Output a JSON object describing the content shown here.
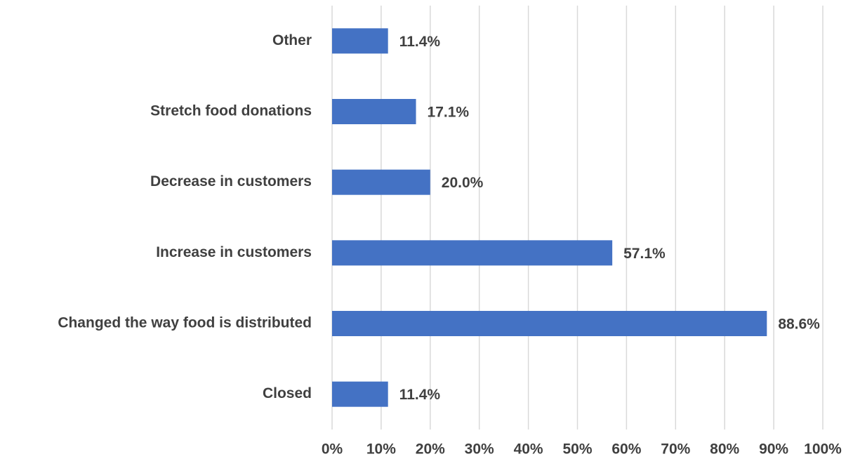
{
  "chart_data": {
    "type": "bar",
    "orientation": "horizontal",
    "categories": [
      "Other",
      "Stretch food donations",
      "Decrease in customers",
      "Increase in customers",
      "Changed the way food is distributed",
      "Closed"
    ],
    "values": [
      11.4,
      17.1,
      20.0,
      57.1,
      88.6,
      11.4
    ],
    "value_labels": [
      "11.4%",
      "17.1%",
      "20.0%",
      "57.1%",
      "88.6%",
      "11.4%"
    ],
    "color": "#4472c4",
    "xlim": [
      0,
      100
    ],
    "xticks": [
      {
        "value": 0,
        "label": "0%"
      },
      {
        "value": 10,
        "label": "10%"
      },
      {
        "value": 20,
        "label": "20%"
      },
      {
        "value": 30,
        "label": "30%"
      },
      {
        "value": 40,
        "label": "40%"
      },
      {
        "value": 50,
        "label": "50%"
      },
      {
        "value": 60,
        "label": "60%"
      },
      {
        "value": 70,
        "label": "70%"
      },
      {
        "value": 80,
        "label": "80%"
      },
      {
        "value": 90,
        "label": "90%"
      },
      {
        "value": 100,
        "label": "100%"
      }
    ],
    "grid": true
  }
}
